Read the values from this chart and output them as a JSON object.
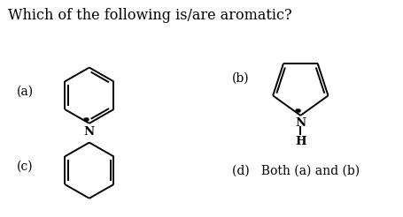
{
  "title": "Which of the following is/are aromatic?",
  "title_fontsize": 11.5,
  "label_a": "(a)",
  "label_b": "(b)",
  "label_c": "(c)",
  "label_d": "(d)   Both (a) and (b)",
  "bg_color": "#ffffff",
  "line_color": "#000000",
  "font_family": "DejaVu Serif",
  "fig_w": 4.56,
  "fig_h": 2.46,
  "dpi": 100
}
